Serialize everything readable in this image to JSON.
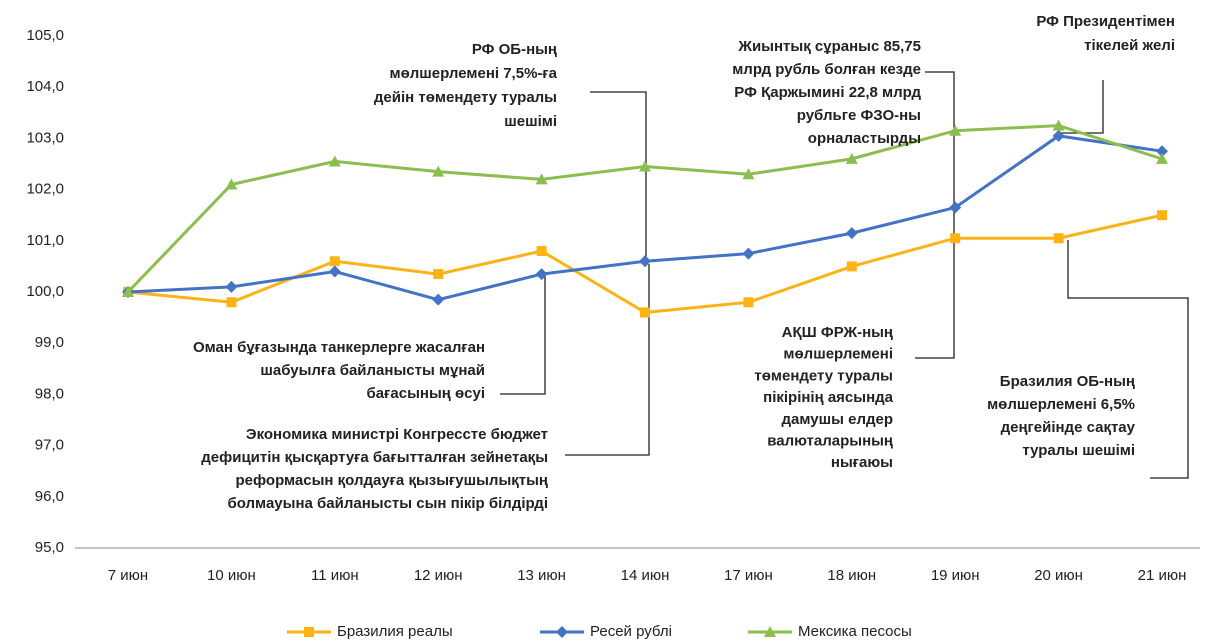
{
  "chart_data": {
    "type": "line",
    "categories": [
      "7 июн",
      "10 июн",
      "11 июн",
      "12 июн",
      "13 июн",
      "14 июн",
      "17 июн",
      "18 июн",
      "19 июн",
      "20 июн",
      "21 июн"
    ],
    "series": [
      {
        "name": "Бразилия реалы",
        "color": "#fcb316",
        "values": [
          100.0,
          99.8,
          100.6,
          100.35,
          100.8,
          99.6,
          99.8,
          100.5,
          101.05,
          101.05,
          101.5
        ]
      },
      {
        "name": "Ресей рублі",
        "color": "#4472c4",
        "values": [
          100.0,
          100.1,
          100.4,
          99.85,
          100.35,
          100.6,
          100.75,
          101.15,
          101.65,
          103.05,
          102.75
        ]
      },
      {
        "name": "Мексика песосы",
        "color": "#8cbd4f",
        "values": [
          100.0,
          102.1,
          102.55,
          102.35,
          102.2,
          102.45,
          102.3,
          102.6,
          103.15,
          103.25,
          102.6
        ]
      }
    ],
    "ylim": [
      95,
      105
    ],
    "yticks": [
      {
        "value": 95,
        "label": "95,0"
      },
      {
        "value": 96,
        "label": "96,0"
      },
      {
        "value": 97,
        "label": "97,0"
      },
      {
        "value": 98,
        "label": "98,0"
      },
      {
        "value": 99,
        "label": "99,0"
      },
      {
        "value": 100,
        "label": "100,0"
      },
      {
        "value": 101,
        "label": "101,0"
      },
      {
        "value": 102,
        "label": "102,0"
      },
      {
        "value": 103,
        "label": "103,0"
      },
      {
        "value": 104,
        "label": "104,0"
      },
      {
        "value": 105,
        "label": "105,0"
      }
    ],
    "legend": "bottom",
    "annotations": [
      {
        "lines": [
          "РФ ОБ-ның",
          "мөлшерлемені  7,5%-ға",
          "дейін  төмендету  туралы",
          "шешімі"
        ]
      },
      {
        "lines": [
          "Жиынтық  сұраныс 85,75",
          "млрд  рубль  болған  кезде",
          "РФ  Қаржымині  22,8 млрд",
          "рубльге  ФЗО-ны",
          "орналастырды"
        ]
      },
      {
        "lines": [
          "РФ Президентімен",
          "тікелей желі"
        ]
      },
      {
        "lines": [
          "Оман бұғазында танкерлерге жасалған",
          "шабуылға  байланысты  мұнай",
          "бағасының өсуі"
        ]
      },
      {
        "lines": [
          "Экономика  министрі  Конгрессте  бюджет",
          "дефицитін  қысқартуға  бағытталған  зейнетақы",
          "реформасын  қолдауға  қызығушылықтың",
          "болмауына  байланысты   сын  пікір  білдірді"
        ]
      },
      {
        "lines": [
          "АҚШ  ФРЖ-ның",
          "мөлшерлемені",
          "төмендету  туралы",
          "пікірінің  аясында",
          "дамушы  елдер",
          "валюталарының",
          "нығаюы"
        ]
      },
      {
        "lines": [
          "Бразилия  ОБ-ның",
          "мөлшерлемені  6,5%",
          "деңгейінде  сақтау",
          "туралы  шешімі"
        ]
      }
    ]
  }
}
